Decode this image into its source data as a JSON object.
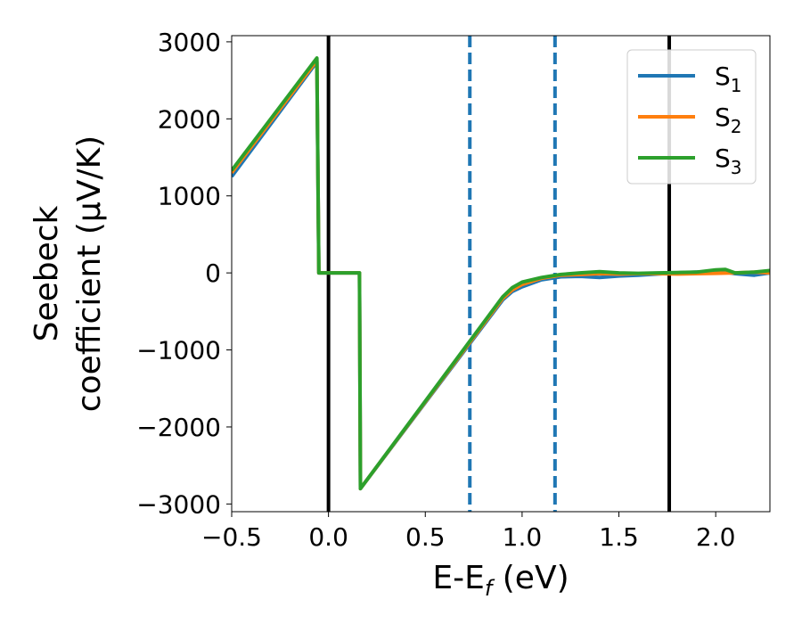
{
  "chart_data": {
    "type": "line",
    "xlabel": {
      "main": "E-E",
      "sub": "f",
      "tail": " (eV)"
    },
    "ylabel": {
      "line1": "Seebeck",
      "line2": "coefficient  (μV/K)"
    },
    "xlim": [
      -0.5,
      2.28
    ],
    "ylim": [
      -3100,
      3080
    ],
    "xticks": [
      -0.5,
      0.0,
      0.5,
      1.0,
      1.5,
      2.0
    ],
    "xtick_labels": [
      "−0.5",
      "0.0",
      "0.5",
      "1.0",
      "1.5",
      "2.0"
    ],
    "yticks": [
      -3000,
      -2000,
      -1000,
      0,
      1000,
      2000,
      3000
    ],
    "ytick_labels": [
      "−3000",
      "−2000",
      "−1000",
      "0",
      "1000",
      "2000",
      "3000"
    ],
    "legend_position": "top-right",
    "series": [
      {
        "name": "S",
        "sub": "1",
        "color": "#1f77b4",
        "points": [
          [
            -0.5,
            1250
          ],
          [
            -0.06,
            2740
          ],
          [
            -0.05,
            0
          ],
          [
            0.16,
            0
          ],
          [
            0.165,
            -2800
          ],
          [
            0.9,
            -350
          ],
          [
            0.95,
            -240
          ],
          [
            1.0,
            -180
          ],
          [
            1.1,
            -90
          ],
          [
            1.2,
            -50
          ],
          [
            1.3,
            -45
          ],
          [
            1.4,
            -60
          ],
          [
            1.5,
            -40
          ],
          [
            1.6,
            -30
          ],
          [
            1.7,
            -15
          ],
          [
            1.8,
            0
          ],
          [
            1.9,
            10
          ],
          [
            2.0,
            20
          ],
          [
            2.05,
            10
          ],
          [
            2.1,
            -10
          ],
          [
            2.2,
            -30
          ],
          [
            2.28,
            0
          ]
        ]
      },
      {
        "name": "S",
        "sub": "2",
        "color": "#ff7f0e",
        "points": [
          [
            -0.5,
            1300
          ],
          [
            -0.06,
            2760
          ],
          [
            -0.05,
            0
          ],
          [
            0.16,
            0
          ],
          [
            0.165,
            -2800
          ],
          [
            0.9,
            -330
          ],
          [
            0.95,
            -220
          ],
          [
            1.0,
            -150
          ],
          [
            1.1,
            -70
          ],
          [
            1.2,
            -30
          ],
          [
            1.3,
            -20
          ],
          [
            1.4,
            -10
          ],
          [
            1.5,
            -15
          ],
          [
            1.6,
            -10
          ],
          [
            1.7,
            -10
          ],
          [
            1.8,
            -15
          ],
          [
            1.9,
            -10
          ],
          [
            2.0,
            -5
          ],
          [
            2.1,
            0
          ],
          [
            2.2,
            10
          ],
          [
            2.28,
            0
          ]
        ]
      },
      {
        "name": "S",
        "sub": "3",
        "color": "#2ca02c",
        "points": [
          [
            -0.5,
            1330
          ],
          [
            -0.06,
            2790
          ],
          [
            -0.05,
            0
          ],
          [
            0.16,
            0
          ],
          [
            0.165,
            -2800
          ],
          [
            0.9,
            -310
          ],
          [
            0.95,
            -190
          ],
          [
            1.0,
            -120
          ],
          [
            1.1,
            -60
          ],
          [
            1.2,
            -20
          ],
          [
            1.3,
            0
          ],
          [
            1.4,
            15
          ],
          [
            1.5,
            0
          ],
          [
            1.6,
            -5
          ],
          [
            1.7,
            0
          ],
          [
            1.8,
            5
          ],
          [
            1.9,
            10
          ],
          [
            2.0,
            40
          ],
          [
            2.05,
            45
          ],
          [
            2.1,
            0
          ],
          [
            2.2,
            10
          ],
          [
            2.28,
            30
          ]
        ]
      }
    ],
    "vlines": [
      {
        "x": 0.0,
        "color": "#000000",
        "style": "solid"
      },
      {
        "x": 1.76,
        "color": "#000000",
        "style": "solid"
      },
      {
        "x": 0.73,
        "color": "#1f77b4",
        "style": "dashed"
      },
      {
        "x": 1.17,
        "color": "#1f77b4",
        "style": "dashed"
      }
    ]
  }
}
